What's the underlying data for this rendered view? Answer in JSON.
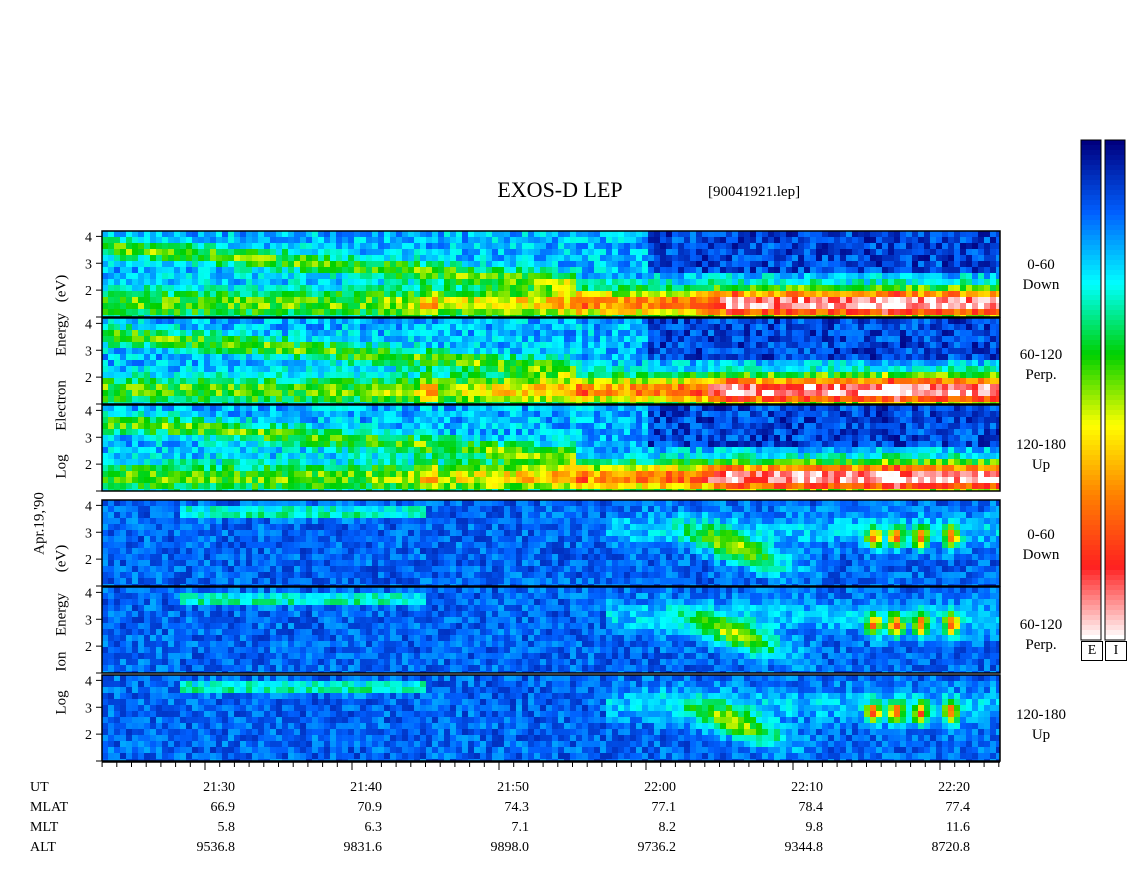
{
  "header": {
    "title": "EXOS-D LEP",
    "file": "[90041921.lep]"
  },
  "left_labels": {
    "date": "Apr.19,'90",
    "electron": {
      "line1": "Energy",
      "line2": "Electron",
      "line3": "Log",
      "unit": "(eV)"
    },
    "ion": {
      "line1": "Energy",
      "line2": "Ion",
      "line3": "Log",
      "unit": "(eV)"
    }
  },
  "panels": [
    {
      "species": "Electron",
      "angle": "0-60",
      "direction": "Down"
    },
    {
      "species": "Electron",
      "angle": "60-120",
      "direction": "Perp."
    },
    {
      "species": "Electron",
      "angle": "120-180",
      "direction": "Up"
    },
    {
      "species": "Ion",
      "angle": "0-60",
      "direction": "Down"
    },
    {
      "species": "Ion",
      "angle": "60-120",
      "direction": "Perp."
    },
    {
      "species": "Ion",
      "angle": "120-180",
      "direction": "Up"
    }
  ],
  "colorbar": {
    "labels": [
      "E",
      "I"
    ]
  },
  "footer": {
    "row_labels": [
      "UT",
      "MLAT",
      "MLT",
      "ALT"
    ],
    "columns": [
      {
        "ut": "21:30",
        "mlat": "66.9",
        "mlt": "5.8",
        "alt": "9536.8"
      },
      {
        "ut": "21:40",
        "mlat": "70.9",
        "mlt": "6.3",
        "alt": "9831.6"
      },
      {
        "ut": "21:50",
        "mlat": "74.3",
        "mlt": "7.1",
        "alt": "9898.0"
      },
      {
        "ut": "22:00",
        "mlat": "77.1",
        "mlt": "8.2",
        "alt": "9736.2"
      },
      {
        "ut": "22:10",
        "mlat": "78.4",
        "mlt": "9.8",
        "alt": "9344.8"
      },
      {
        "ut": "22:20",
        "mlat": "77.4",
        "mlt": "11.6",
        "alt": "8720.8"
      }
    ]
  },
  "chart_data": {
    "type": "heatmap",
    "title": "EXOS-D LEP",
    "x": [
      "21:30",
      "21:40",
      "21:50",
      "22:00",
      "22:10",
      "22:20"
    ],
    "xlabel": "UT",
    "ylabel": "Log Energy (eV)",
    "ylim": [
      1,
      4.2
    ],
    "yticks": [
      2,
      3,
      4
    ],
    "colormap": [
      "#ffffff",
      "#ff2020",
      "#ff8000",
      "#ffff00",
      "#00d000",
      "#00ffff",
      "#0060ff",
      "#000080"
    ],
    "panels": [
      {
        "name": "Electron 0-60 Down"
      },
      {
        "name": "Electron 60-120 Perp."
      },
      {
        "name": "Electron 120-180 Up"
      },
      {
        "name": "Ion 0-60 Down"
      },
      {
        "name": "Ion 60-120 Perp."
      },
      {
        "name": "Ion 120-180 Up"
      }
    ]
  }
}
